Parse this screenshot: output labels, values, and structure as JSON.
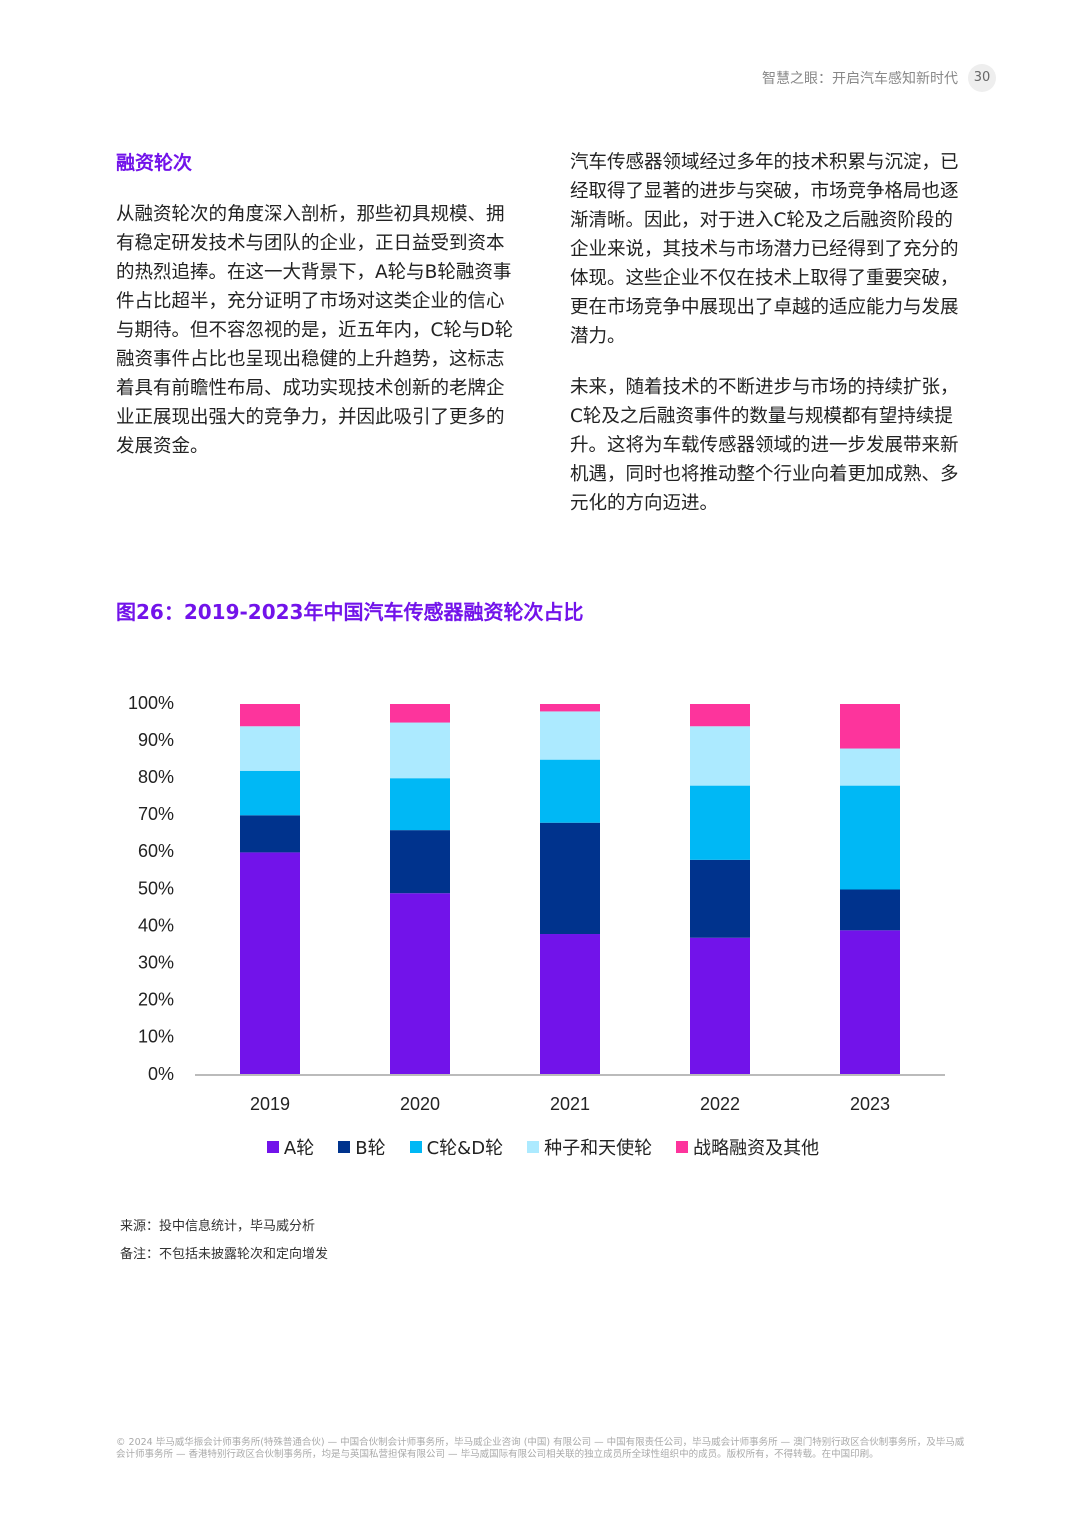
{
  "header": {
    "title": "智慧之眼：开启汽车感知新时代",
    "page": "30"
  },
  "left": {
    "heading": "融资轮次",
    "text": "从融资轮次的角度深入剖析，那些初具规模、拥有稳定研发技术与团队的企业，正日益受到资本的热烈追捧。在这一大背景下，A轮与B轮融资事件占比超半，充分证明了市场对这类企业的信心与期待。但不容忽视的是，近五年内，C轮与D轮融资事件占比也呈现出稳健的上升趋势，这标志着具有前瞻性布局、成功实现技术创新的老牌企业正展现出强大的竞争力，并因此吸引了更多的发展资金。"
  },
  "right": {
    "paragraphs": [
      "汽车传感器领域经过多年的技术积累与沉淀，已经取得了显著的进步与突破，市场竞争格局也逐渐清晰。因此，对于进入C轮及之后融资阶段的企业来说，其技术与市场潜力已经得到了充分的体现。这些企业不仅在技术上取得了重要突破，更在市场竞争中展现出了卓越的适应能力与发展潜力。",
      "未来，随着技术的不断进步与市场的持续扩张，C轮及之后融资事件的数量与规模都有望持续提升。这将为车载传感器领域的进一步发展带来新机遇，同时也将推动整个行业向着更加成熟、多元化的方向迈进。"
    ]
  },
  "chart_data": {
    "type": "bar",
    "stacked": true,
    "title": "图26：2019-2023年中国汽车传感器融资轮次占比",
    "categories": [
      "2019",
      "2020",
      "2021",
      "2022",
      "2023"
    ],
    "series": [
      {
        "name": "A轮",
        "color": "#7213ea",
        "values": [
          60,
          49,
          38,
          37,
          39
        ]
      },
      {
        "name": "B轮",
        "color": "#00338d",
        "values": [
          10,
          17,
          30,
          21,
          11
        ]
      },
      {
        "name": "C轮&D轮",
        "color": "#00b8f5",
        "values": [
          12,
          14,
          17,
          20,
          28
        ]
      },
      {
        "name": "种子和天使轮",
        "color": "#aceaff",
        "values": [
          12,
          15,
          13,
          16,
          10
        ]
      },
      {
        "name": "战略融资及其他",
        "color": "#fd349c",
        "values": [
          6,
          5,
          2,
          6,
          12
        ]
      }
    ],
    "ylim": [
      0,
      100
    ],
    "yticks": [
      {
        "value": 0,
        "label": "0%"
      },
      {
        "value": 10,
        "label": "10%"
      },
      {
        "value": 20,
        "label": "20%"
      },
      {
        "value": 30,
        "label": "30%"
      },
      {
        "value": 40,
        "label": "40%"
      },
      {
        "value": 50,
        "label": "50%"
      },
      {
        "value": 60,
        "label": "60%"
      },
      {
        "value": 70,
        "label": "70%"
      },
      {
        "value": 80,
        "label": "80%"
      },
      {
        "value": 90,
        "label": "90%"
      },
      {
        "value": 100,
        "label": "100%"
      }
    ],
    "grid": false
  },
  "source": "来源：投中信息统计，毕马威分析",
  "note": "备注：不包括未披露轮次和定向增发",
  "footer": "© 2024 毕马威华振会计师事务所(特殊普通合伙) — 中国合伙制会计师事务所，毕马威企业咨询 (中国) 有限公司 — 中国有限责任公司，毕马威会计师事务所 — 澳门特别行政区合伙制事务所，及毕马威会计师事务所 — 香港特别行政区合伙制事务所，均是与英国私营担保有限公司 — 毕马威国际有限公司相关联的独立成员所全球性组织中的成员。版权所有，不得转载。在中国印刷。"
}
